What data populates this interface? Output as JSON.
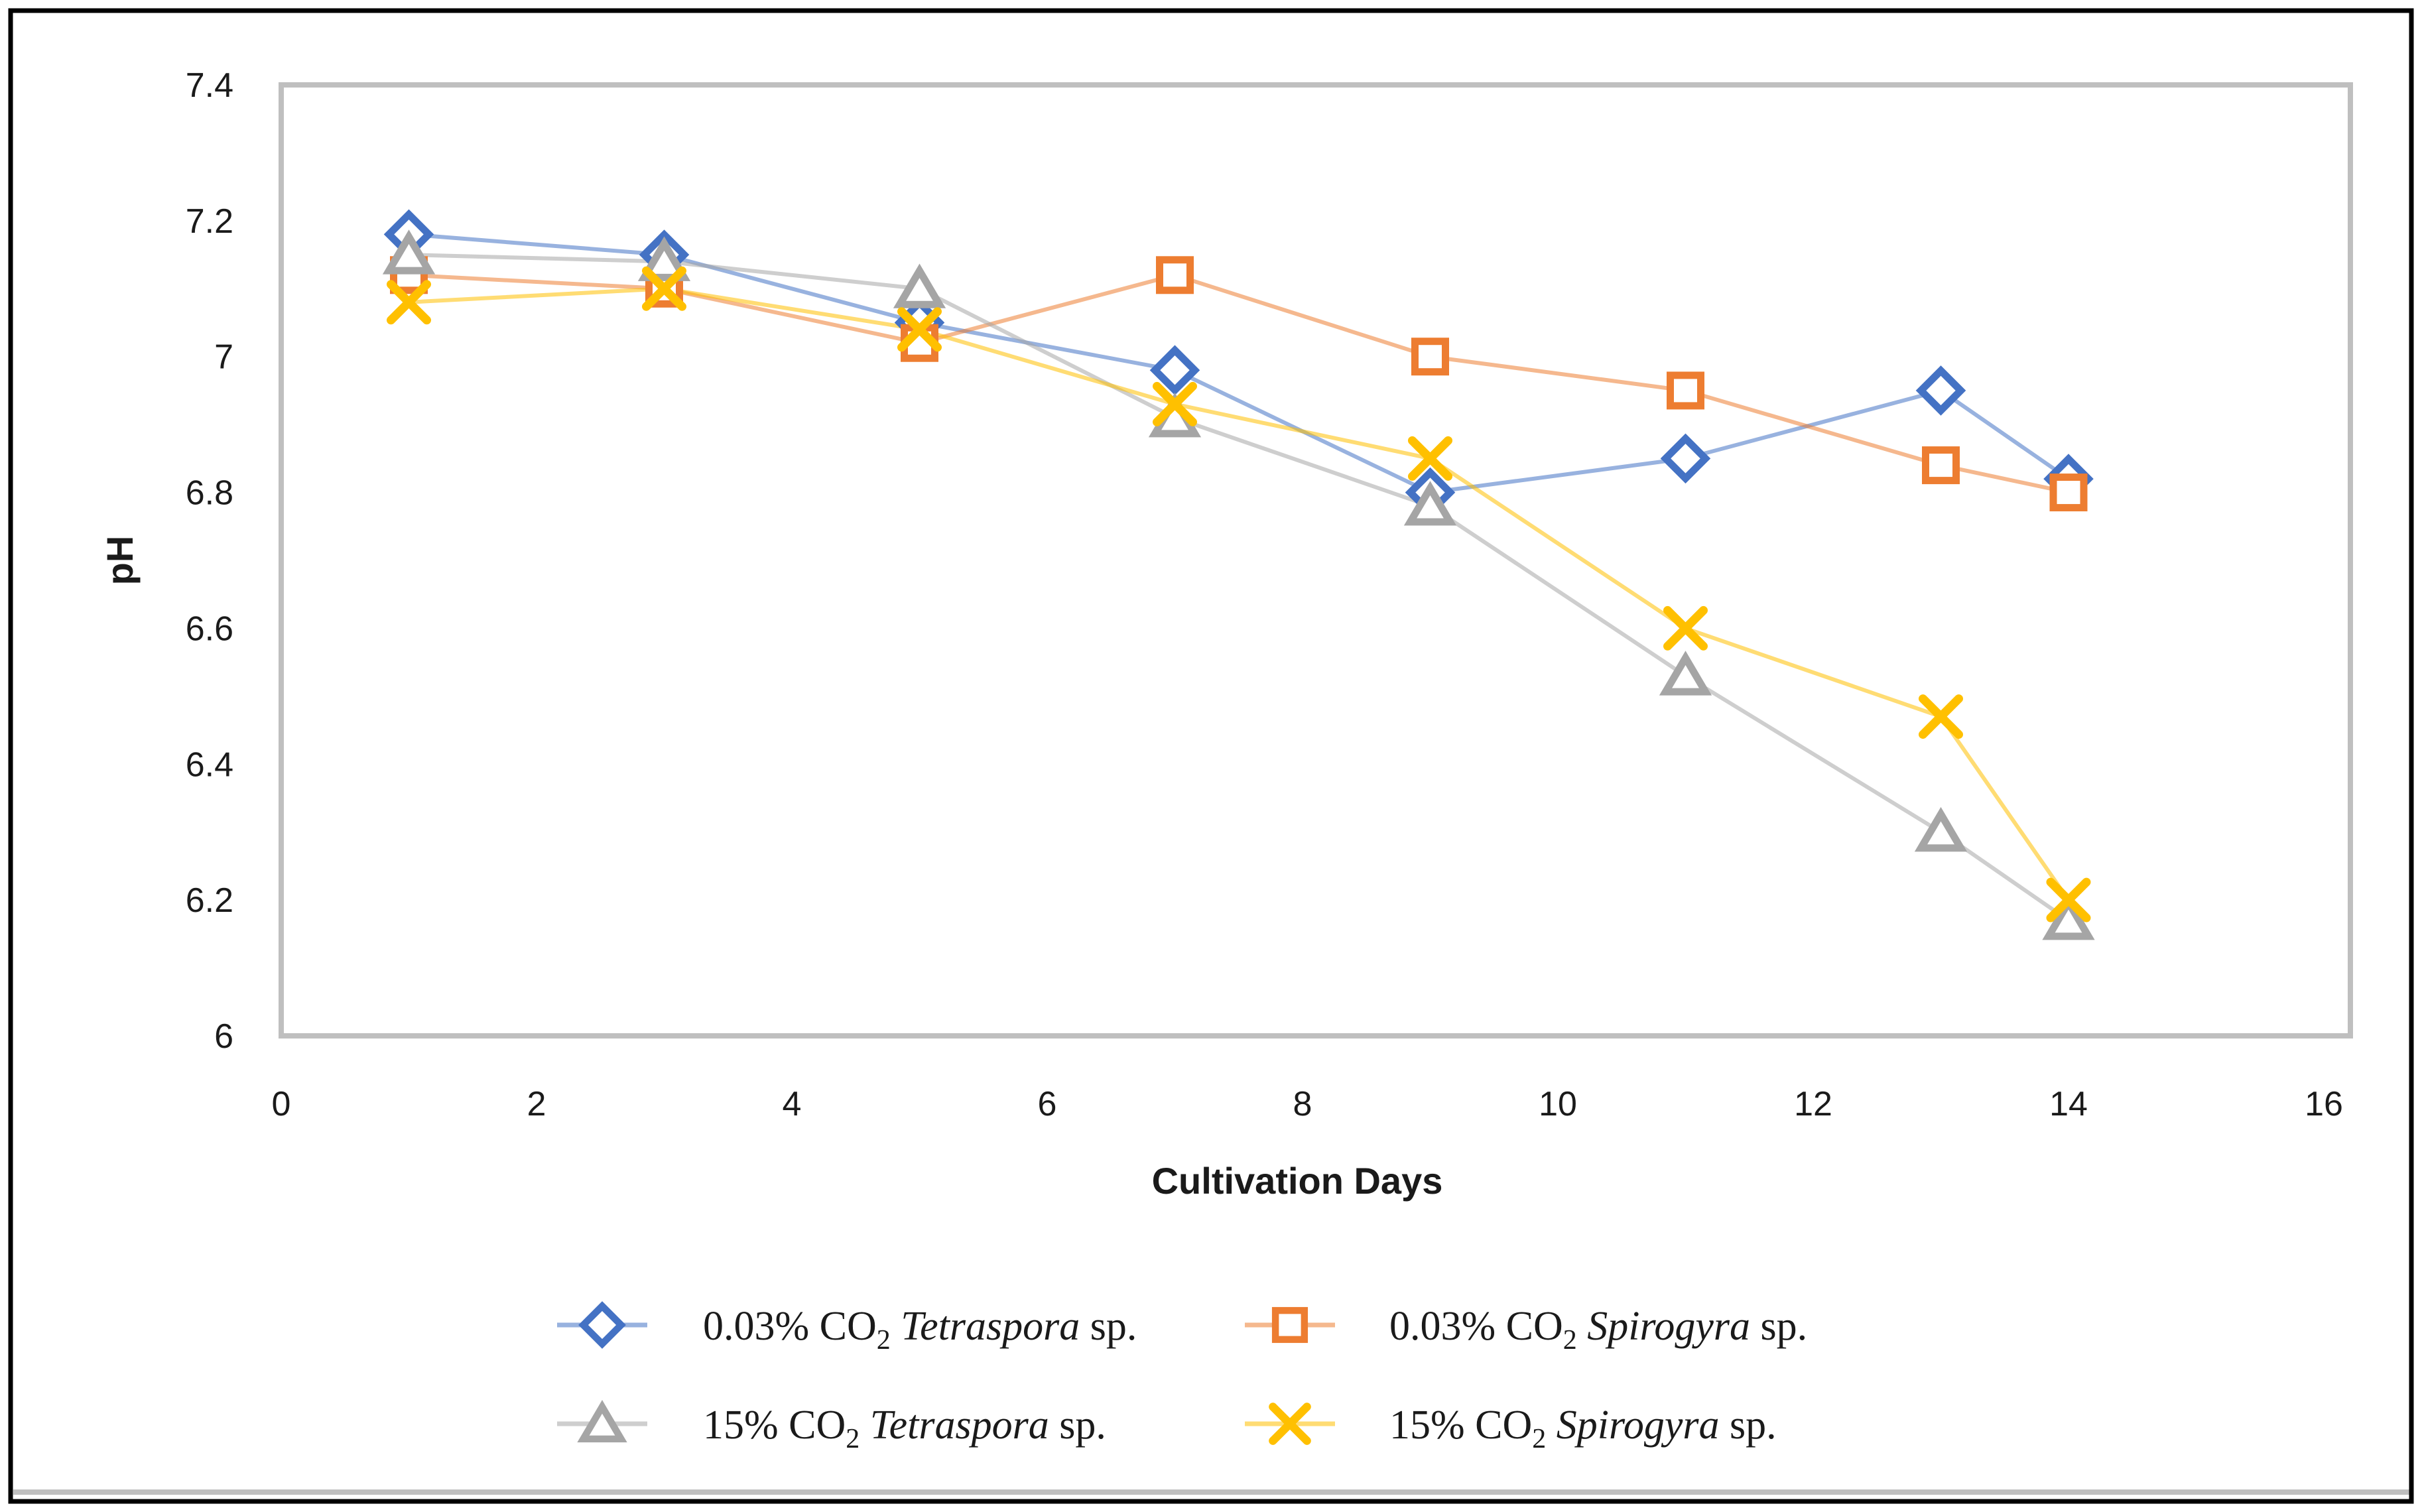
{
  "chart_data": {
    "type": "line",
    "title": "",
    "xlabel": "Cultivation Days",
    "ylabel": "pH",
    "x": [
      1,
      3,
      5,
      7,
      9,
      11,
      13,
      14
    ],
    "xlim": [
      0,
      16
    ],
    "ylim": [
      6.0,
      7.4
    ],
    "x_ticks": [
      "0",
      "2",
      "4",
      "6",
      "8",
      "10",
      "12",
      "14",
      "16"
    ],
    "x_tick_values": [
      0,
      2,
      4,
      6,
      8,
      10,
      12,
      14,
      16
    ],
    "y_ticks": [
      "7.4",
      "7.2",
      "7",
      "6.8",
      "6.6",
      "6.4",
      "6.2",
      "6"
    ],
    "y_tick_values": [
      7.4,
      7.2,
      7.0,
      6.8,
      6.6,
      6.4,
      6.2,
      6.0
    ],
    "grid": false,
    "legend_position": "bottom",
    "plot_border_color": "#BFBFBF",
    "frame_border_color": "#000000",
    "series": [
      {
        "name": "0.03% CO2 Tetraspora sp.",
        "label_parts": {
          "prefix": "0.03% CO",
          "subscript": "2",
          "italic": " Tetraspora",
          "suffix": " sp."
        },
        "marker": "diamond",
        "color": "#4472C4",
        "values": [
          7.18,
          7.15,
          7.05,
          6.98,
          6.8,
          6.85,
          6.95,
          6.82
        ]
      },
      {
        "name": "0.03% CO2 Spirogyra sp.",
        "label_parts": {
          "prefix": "0.03% CO",
          "subscript": "2",
          "italic": " Spirogyra",
          "suffix": " sp."
        },
        "marker": "square",
        "color": "#ED7D31",
        "values": [
          7.12,
          7.1,
          7.02,
          7.12,
          7.0,
          6.95,
          6.84,
          6.8
        ]
      },
      {
        "name": "15% CO2 Tetraspora sp.",
        "label_parts": {
          "prefix": "15% CO",
          "subscript": "2",
          "italic": " Tetraspora",
          "suffix": " sp."
        },
        "marker": "triangle",
        "color": "#A5A5A5",
        "values": [
          7.15,
          7.14,
          7.1,
          6.91,
          6.78,
          6.53,
          6.3,
          6.17
        ]
      },
      {
        "name": "15% CO2 Spirogyra sp.",
        "label_parts": {
          "prefix": "15% CO",
          "subscript": "2",
          "italic": " Spirogyra",
          "suffix": " sp."
        },
        "marker": "x",
        "color": "#FFC000",
        "values": [
          7.08,
          7.1,
          7.04,
          6.93,
          6.85,
          6.6,
          6.47,
          6.2
        ]
      }
    ]
  }
}
